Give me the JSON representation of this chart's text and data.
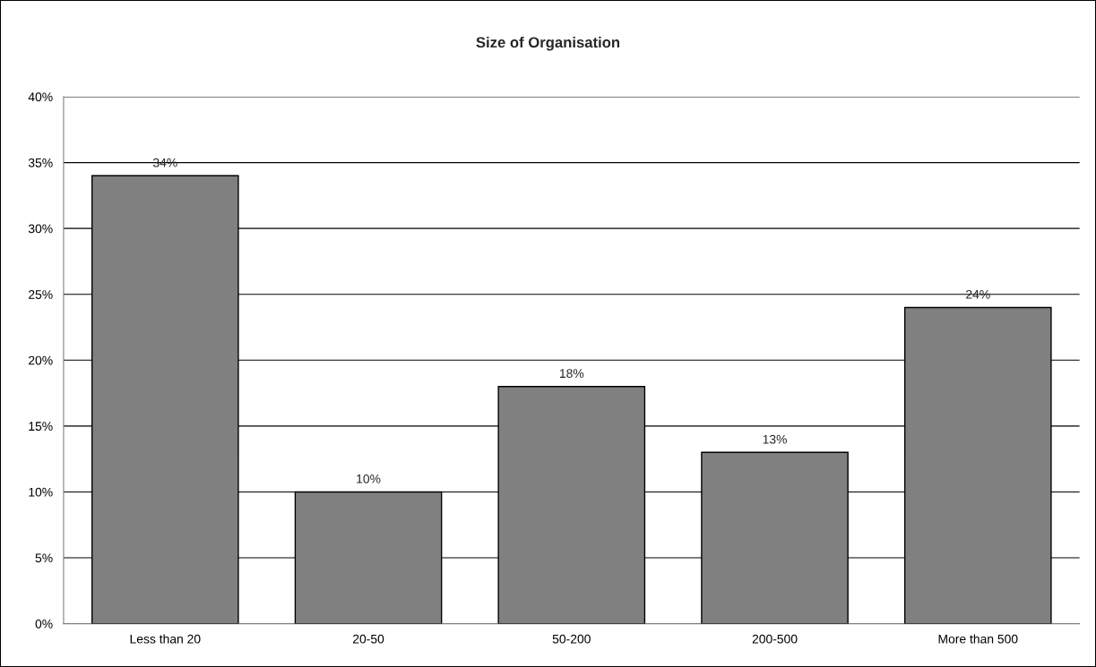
{
  "chart_data": {
    "type": "bar",
    "title": "Size of Organisation",
    "categories": [
      "Less than 20",
      "20-50",
      "50-200",
      "200-500",
      "More than 500"
    ],
    "values": [
      34,
      10,
      18,
      13,
      24
    ],
    "value_labels": [
      "34%",
      "10%",
      "18%",
      "13%",
      "24%"
    ],
    "color": "#808080",
    "ylim": [
      0,
      40
    ],
    "yticks": [
      {
        "value": 0,
        "label": "0%"
      },
      {
        "value": 5,
        "label": "5%"
      },
      {
        "value": 10,
        "label": "10%"
      },
      {
        "value": 15,
        "label": "15%"
      },
      {
        "value": 20,
        "label": "20%"
      },
      {
        "value": 25,
        "label": "25%"
      },
      {
        "value": 30,
        "label": "30%"
      },
      {
        "value": 35,
        "label": "35%"
      },
      {
        "value": 40,
        "label": "40%"
      }
    ],
    "grid": "y"
  }
}
